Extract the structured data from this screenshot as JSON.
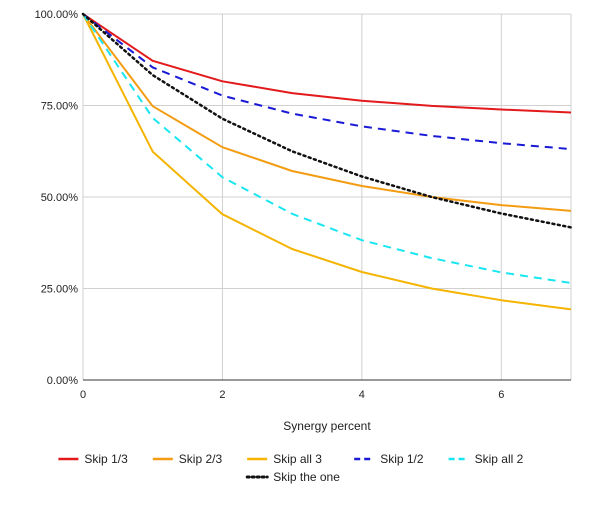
{
  "chart_data": {
    "type": "line",
    "title": "",
    "xlabel": "Synergy percent",
    "ylabel": "",
    "xlim": [
      0,
      7
    ],
    "ylim": [
      0,
      100
    ],
    "x_ticks": [
      0,
      2,
      4,
      6
    ],
    "x_tick_labels": [
      "0",
      "2",
      "4",
      "6"
    ],
    "y_ticks": [
      0,
      25,
      50,
      75,
      100
    ],
    "y_tick_labels": [
      "0.00%",
      "25.00%",
      "50.00%",
      "75.00%",
      "100.00%"
    ],
    "grid": true,
    "legend_position": "bottom",
    "x": [
      0,
      1,
      2,
      3,
      4,
      5,
      6,
      7
    ],
    "series": [
      {
        "name": "Skip 1/3",
        "color": "#e31a1c",
        "dash": "solid",
        "values": [
          100,
          87.2,
          81.6,
          78.4,
          76.3,
          74.9,
          73.9,
          73.1
        ]
      },
      {
        "name": "Skip 2/3",
        "color": "#f39c12",
        "dash": "solid",
        "values": [
          100,
          74.8,
          63.6,
          57.1,
          53.0,
          50.0,
          47.8,
          46.2
        ]
      },
      {
        "name": "Skip all 3",
        "color": "#f4b400",
        "dash": "solid",
        "values": [
          100,
          62.4,
          45.3,
          35.8,
          29.5,
          25.0,
          21.8,
          19.3
        ]
      },
      {
        "name": "Skip 1/2",
        "color": "#1a1ad6",
        "dash": "dashed",
        "values": [
          100,
          85.4,
          77.7,
          72.8,
          69.3,
          66.7,
          64.7,
          63.1
        ]
      },
      {
        "name": "Skip all 2",
        "color": "#19e6f0",
        "dash": "dashed",
        "values": [
          100,
          71.6,
          55.4,
          45.4,
          38.2,
          33.3,
          29.4,
          26.5
        ]
      },
      {
        "name": "Skip the one",
        "color": "#111111",
        "dash": "dotted",
        "values": [
          100,
          83.3,
          71.4,
          62.5,
          55.6,
          50.0,
          45.5,
          41.7
        ]
      }
    ]
  }
}
